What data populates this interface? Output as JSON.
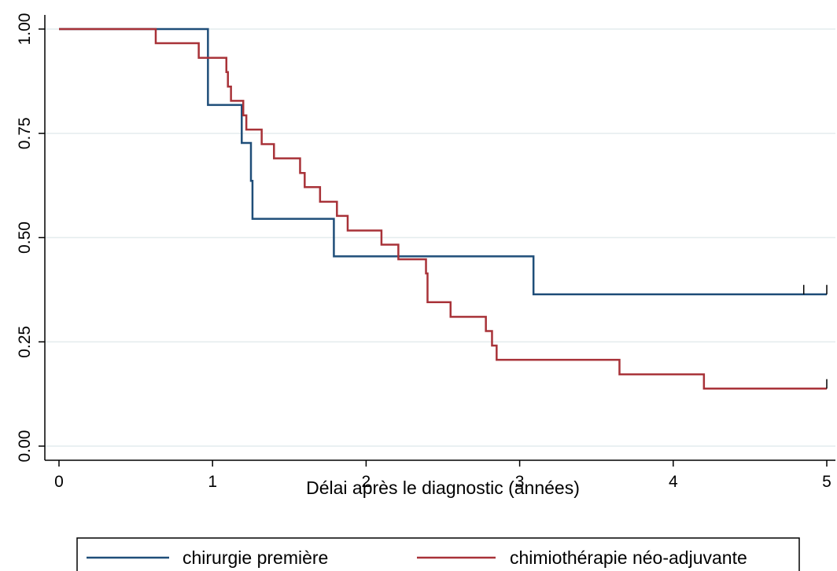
{
  "chart_data": {
    "type": "line",
    "subtype": "kaplan-meier-step",
    "title": "",
    "xlabel": "Délai après le diagnostic (années)",
    "ylabel": "",
    "xlim": [
      0,
      5
    ],
    "ylim": [
      0,
      1
    ],
    "x_ticks": [
      0,
      1,
      2,
      3,
      4,
      5
    ],
    "x_tick_labels": [
      "0",
      "1",
      "2",
      "3",
      "4",
      "5"
    ],
    "y_ticks": [
      0,
      0.25,
      0.5,
      0.75,
      1
    ],
    "y_tick_labels": [
      "0.00",
      "0.25",
      "0.50",
      "0.75",
      "1.00"
    ],
    "grid": "horizontal",
    "legend_position": "bottom",
    "series": [
      {
        "name": "chirurgie première",
        "color": "#1f4e79",
        "steps": [
          [
            0,
            1.0
          ],
          [
            0.97,
            0.818
          ],
          [
            1.19,
            0.727
          ],
          [
            1.25,
            0.636
          ],
          [
            1.26,
            0.545
          ],
          [
            1.79,
            0.455
          ],
          [
            3.09,
            0.364
          ]
        ],
        "end_x": 5.0,
        "censor_marks": [
          4.85,
          5.0
        ]
      },
      {
        "name": "chimiothérapie néo-adjuvante",
        "color": "#a83238",
        "steps": [
          [
            0,
            1.0
          ],
          [
            0.63,
            0.966
          ],
          [
            0.91,
            0.931
          ],
          [
            1.09,
            0.897
          ],
          [
            1.1,
            0.862
          ],
          [
            1.12,
            0.828
          ],
          [
            1.2,
            0.793
          ],
          [
            1.22,
            0.759
          ],
          [
            1.32,
            0.724
          ],
          [
            1.4,
            0.69
          ],
          [
            1.57,
            0.655
          ],
          [
            1.6,
            0.621
          ],
          [
            1.7,
            0.586
          ],
          [
            1.81,
            0.552
          ],
          [
            1.88,
            0.517
          ],
          [
            2.1,
            0.483
          ],
          [
            2.21,
            0.448
          ],
          [
            2.39,
            0.414
          ],
          [
            2.4,
            0.345
          ],
          [
            2.55,
            0.31
          ],
          [
            2.78,
            0.276
          ],
          [
            2.82,
            0.241
          ],
          [
            2.85,
            0.207
          ],
          [
            3.65,
            0.172
          ],
          [
            4.2,
            0.138
          ]
        ],
        "end_x": 5.0,
        "censor_marks": [
          5.0
        ]
      }
    ]
  }
}
